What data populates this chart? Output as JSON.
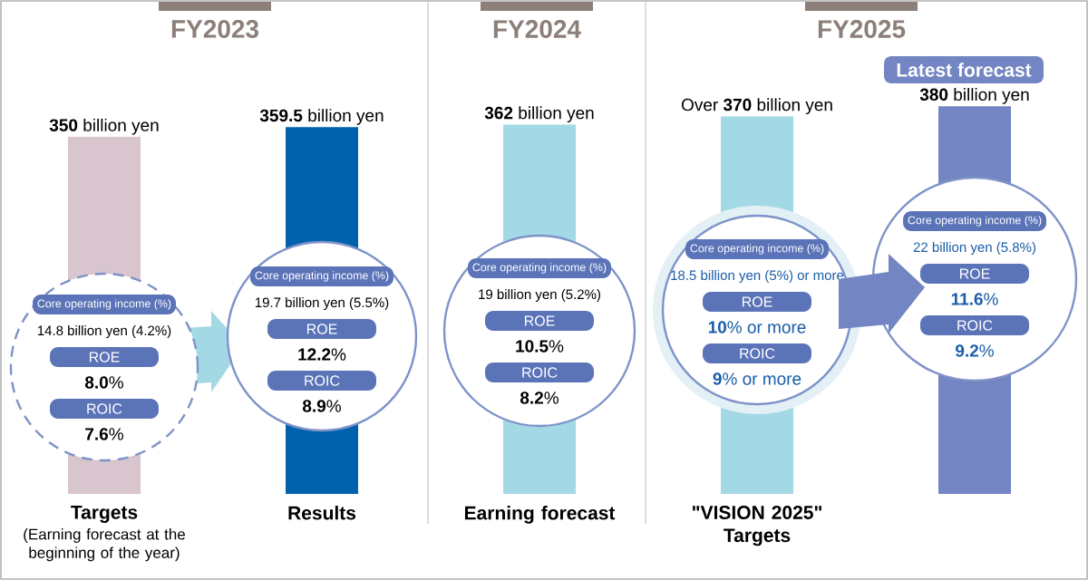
{
  "chart_data": {
    "type": "bar",
    "categories": [
      "Targets",
      "Results",
      "Earning forecast",
      "\"VISION 2025\" Targets",
      null
    ],
    "values": [
      350,
      359.5,
      362,
      370,
      380
    ],
    "colors": [
      "#d8c5ce",
      "#0062ad",
      "#a3d9e5",
      "#a3d9e5",
      "#7385c2"
    ],
    "value_labels": [
      "**350** billion yen",
      "**359.5** billion yen",
      "**362** billion yen",
      "Over **370** billion yen",
      "**380** billion yen"
    ],
    "annotations": [
      "FY2023",
      "FY2024",
      "FY2025",
      "Latest forecast",
      "(Earning forecast at the beginning of the year)",
      "Core operating income (%)",
      "14.8 billion yen (4.2%)",
      "ROE",
      "**8.0**%",
      "ROIC",
      "**7.6**%",
      "Core operating income (%)",
      "19.7 billion yen (5.5%)",
      "ROE",
      "**12.2**%",
      "ROIC",
      "**8.9**%",
      "Core operating income (%)",
      "19 billion yen (5.2%)",
      "ROE",
      "**10.5**%",
      "ROIC",
      "**8.2**%",
      "Core operating income (%)",
      "18.5 billion yen (5%) or more",
      "ROE",
      "**10**% or more",
      "ROIC",
      "**9**% or more",
      "Core operating income (%)",
      "22 billion yen (5.8%)",
      "ROE",
      "**11.6**%",
      "ROIC",
      "**9.2**%"
    ]
  }
}
